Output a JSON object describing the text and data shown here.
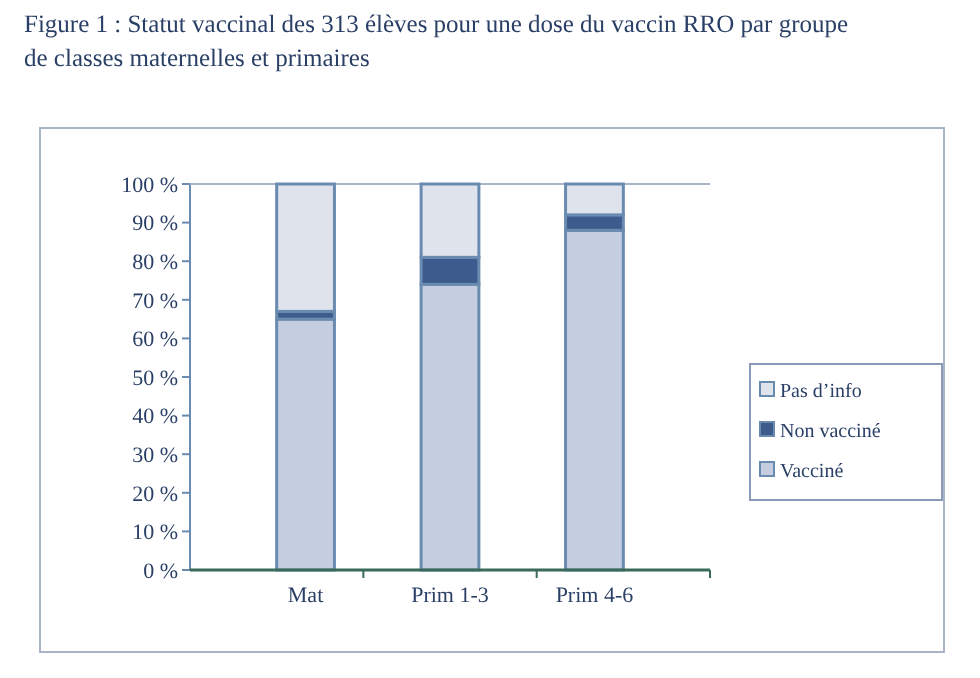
{
  "chart_data": {
    "type": "bar",
    "title": "Figure 1 : Statut vaccinal des 313 élèves pour une dose du vaccin RRO par groupe de classes maternelles et primaires",
    "categories": [
      "Mat",
      "Prim 1-3",
      "Prim 4-6"
    ],
    "stacked": true,
    "series": [
      {
        "name": "Vacciné",
        "color": "#c5cde0",
        "values": [
          65,
          74,
          88
        ]
      },
      {
        "name": "Non vacciné",
        "color": "#3d5b8c",
        "values": [
          2,
          7,
          4
        ]
      },
      {
        "name": "Pas d’info",
        "color": "#dfe3ec",
        "values": [
          33,
          19,
          8
        ]
      }
    ],
    "ylim": [
      0,
      100
    ],
    "yticks": [
      {
        "value": 0,
        "label": "0 %"
      },
      {
        "value": 10,
        "label": "10 %"
      },
      {
        "value": 20,
        "label": "20 %"
      },
      {
        "value": 30,
        "label": "30 %"
      },
      {
        "value": 40,
        "label": "40 %"
      },
      {
        "value": 50,
        "label": "50 %"
      },
      {
        "value": 60,
        "label": "60 %"
      },
      {
        "value": 70,
        "label": "70 %"
      },
      {
        "value": 80,
        "label": "80 %"
      },
      {
        "value": 90,
        "label": "90 %"
      },
      {
        "value": 100,
        "label": "100 %"
      }
    ],
    "legend": "right"
  }
}
